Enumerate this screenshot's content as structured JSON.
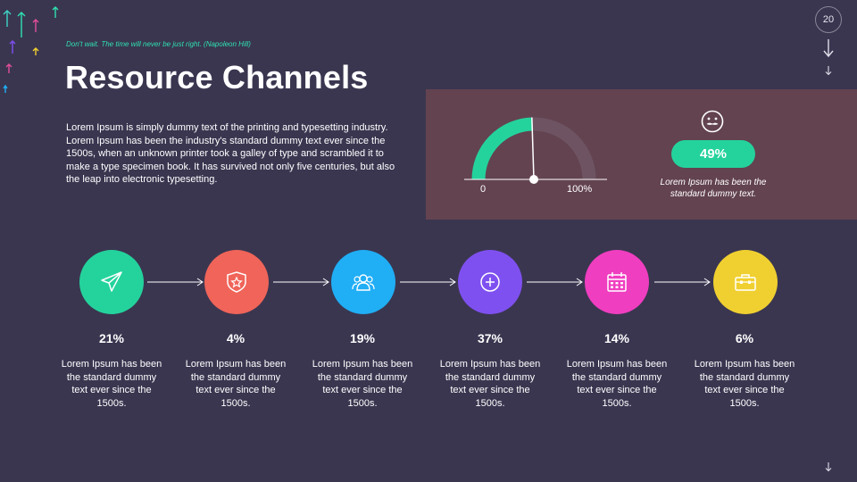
{
  "slide": {
    "quote": "Don't wait. The time will never be just right. (Napoleon Hill)",
    "title": "Resource Channels",
    "body": "Lorem Ipsum is simply dummy text of the printing and typesetting industry. Lorem Ipsum has been the industry's standard dummy text ever since the 1500s, when an unknown printer took a galley of type and scrambled it to make a type specimen book. It has survived not only five centuries, but also the leap into electronic typesetting.",
    "page_number": "20"
  },
  "gauge": {
    "value": 49,
    "min_label": "0",
    "max_label": "100%",
    "pill_text": "49%",
    "caption": "Lorem Ipsum has been the standard  dummy text.",
    "fill_color": "#24d39c",
    "track_color": "#6e5462",
    "icon": "mustache-face-icon"
  },
  "steps": [
    {
      "pct": "21%",
      "desc": "Lorem Ipsum has been the standard dummy text ever since the 1500s.",
      "color": "#24d39c",
      "icon": "paper-plane-icon"
    },
    {
      "pct": "4%",
      "desc": "Lorem Ipsum has been the standard dummy text ever since the 1500s.",
      "color": "#f06459",
      "icon": "shield-star-icon"
    },
    {
      "pct": "19%",
      "desc": "Lorem Ipsum has been the standard dummy text ever since the 1500s.",
      "color": "#20aef5",
      "icon": "users-icon"
    },
    {
      "pct": "37%",
      "desc": "Lorem Ipsum has been the standard dummy text ever since the 1500s.",
      "color": "#7f50f0",
      "icon": "plus-circle-icon"
    },
    {
      "pct": "14%",
      "desc": "Lorem Ipsum has been the standard dummy text ever since the 1500s.",
      "color": "#f03ec0",
      "icon": "calendar-icon"
    },
    {
      "pct": "6%",
      "desc": "Lorem Ipsum has been the standard dummy text ever since the 1500s.",
      "color": "#f0d030",
      "icon": "toolbox-icon"
    }
  ]
}
